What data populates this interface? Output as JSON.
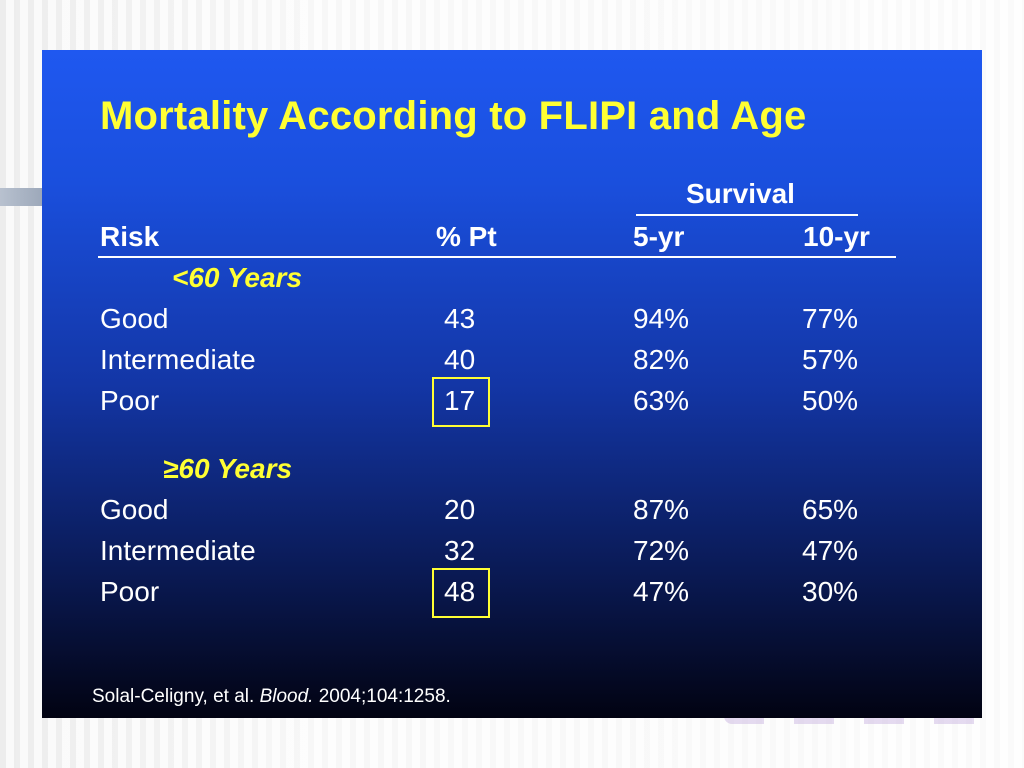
{
  "slide": {
    "title": "Mortality According to FLIPI and Age",
    "header": {
      "survival": "Survival",
      "risk": "Risk",
      "pct_pt": "% Pt",
      "five_yr": "5-yr",
      "ten_yr": "10-yr"
    },
    "groups": [
      {
        "label": "<60 Years",
        "rows": [
          {
            "risk": "Good",
            "pct": "43",
            "five": "94%",
            "ten": "77%"
          },
          {
            "risk": "Intermediate",
            "pct": "40",
            "five": "82%",
            "ten": "57%"
          },
          {
            "risk": "Poor",
            "pct": "17",
            "five": "63%",
            "ten": "50%"
          }
        ]
      },
      {
        "label": "≥60 Years",
        "rows": [
          {
            "risk": "Good",
            "pct": "20",
            "five": "87%",
            "ten": "65%"
          },
          {
            "risk": "Intermediate",
            "pct": "32",
            "five": "72%",
            "ten": "47%"
          },
          {
            "risk": "Poor",
            "pct": "48",
            "five": "47%",
            "ten": "30%"
          }
        ]
      }
    ],
    "citation": {
      "authors": "Solal-Celigny, et al.",
      "journal": "Blood.",
      "ref": "2004;104:1258."
    }
  },
  "colors": {
    "title": "#ffff33",
    "highlight_box": "#ffff33",
    "text": "#ffffff"
  }
}
